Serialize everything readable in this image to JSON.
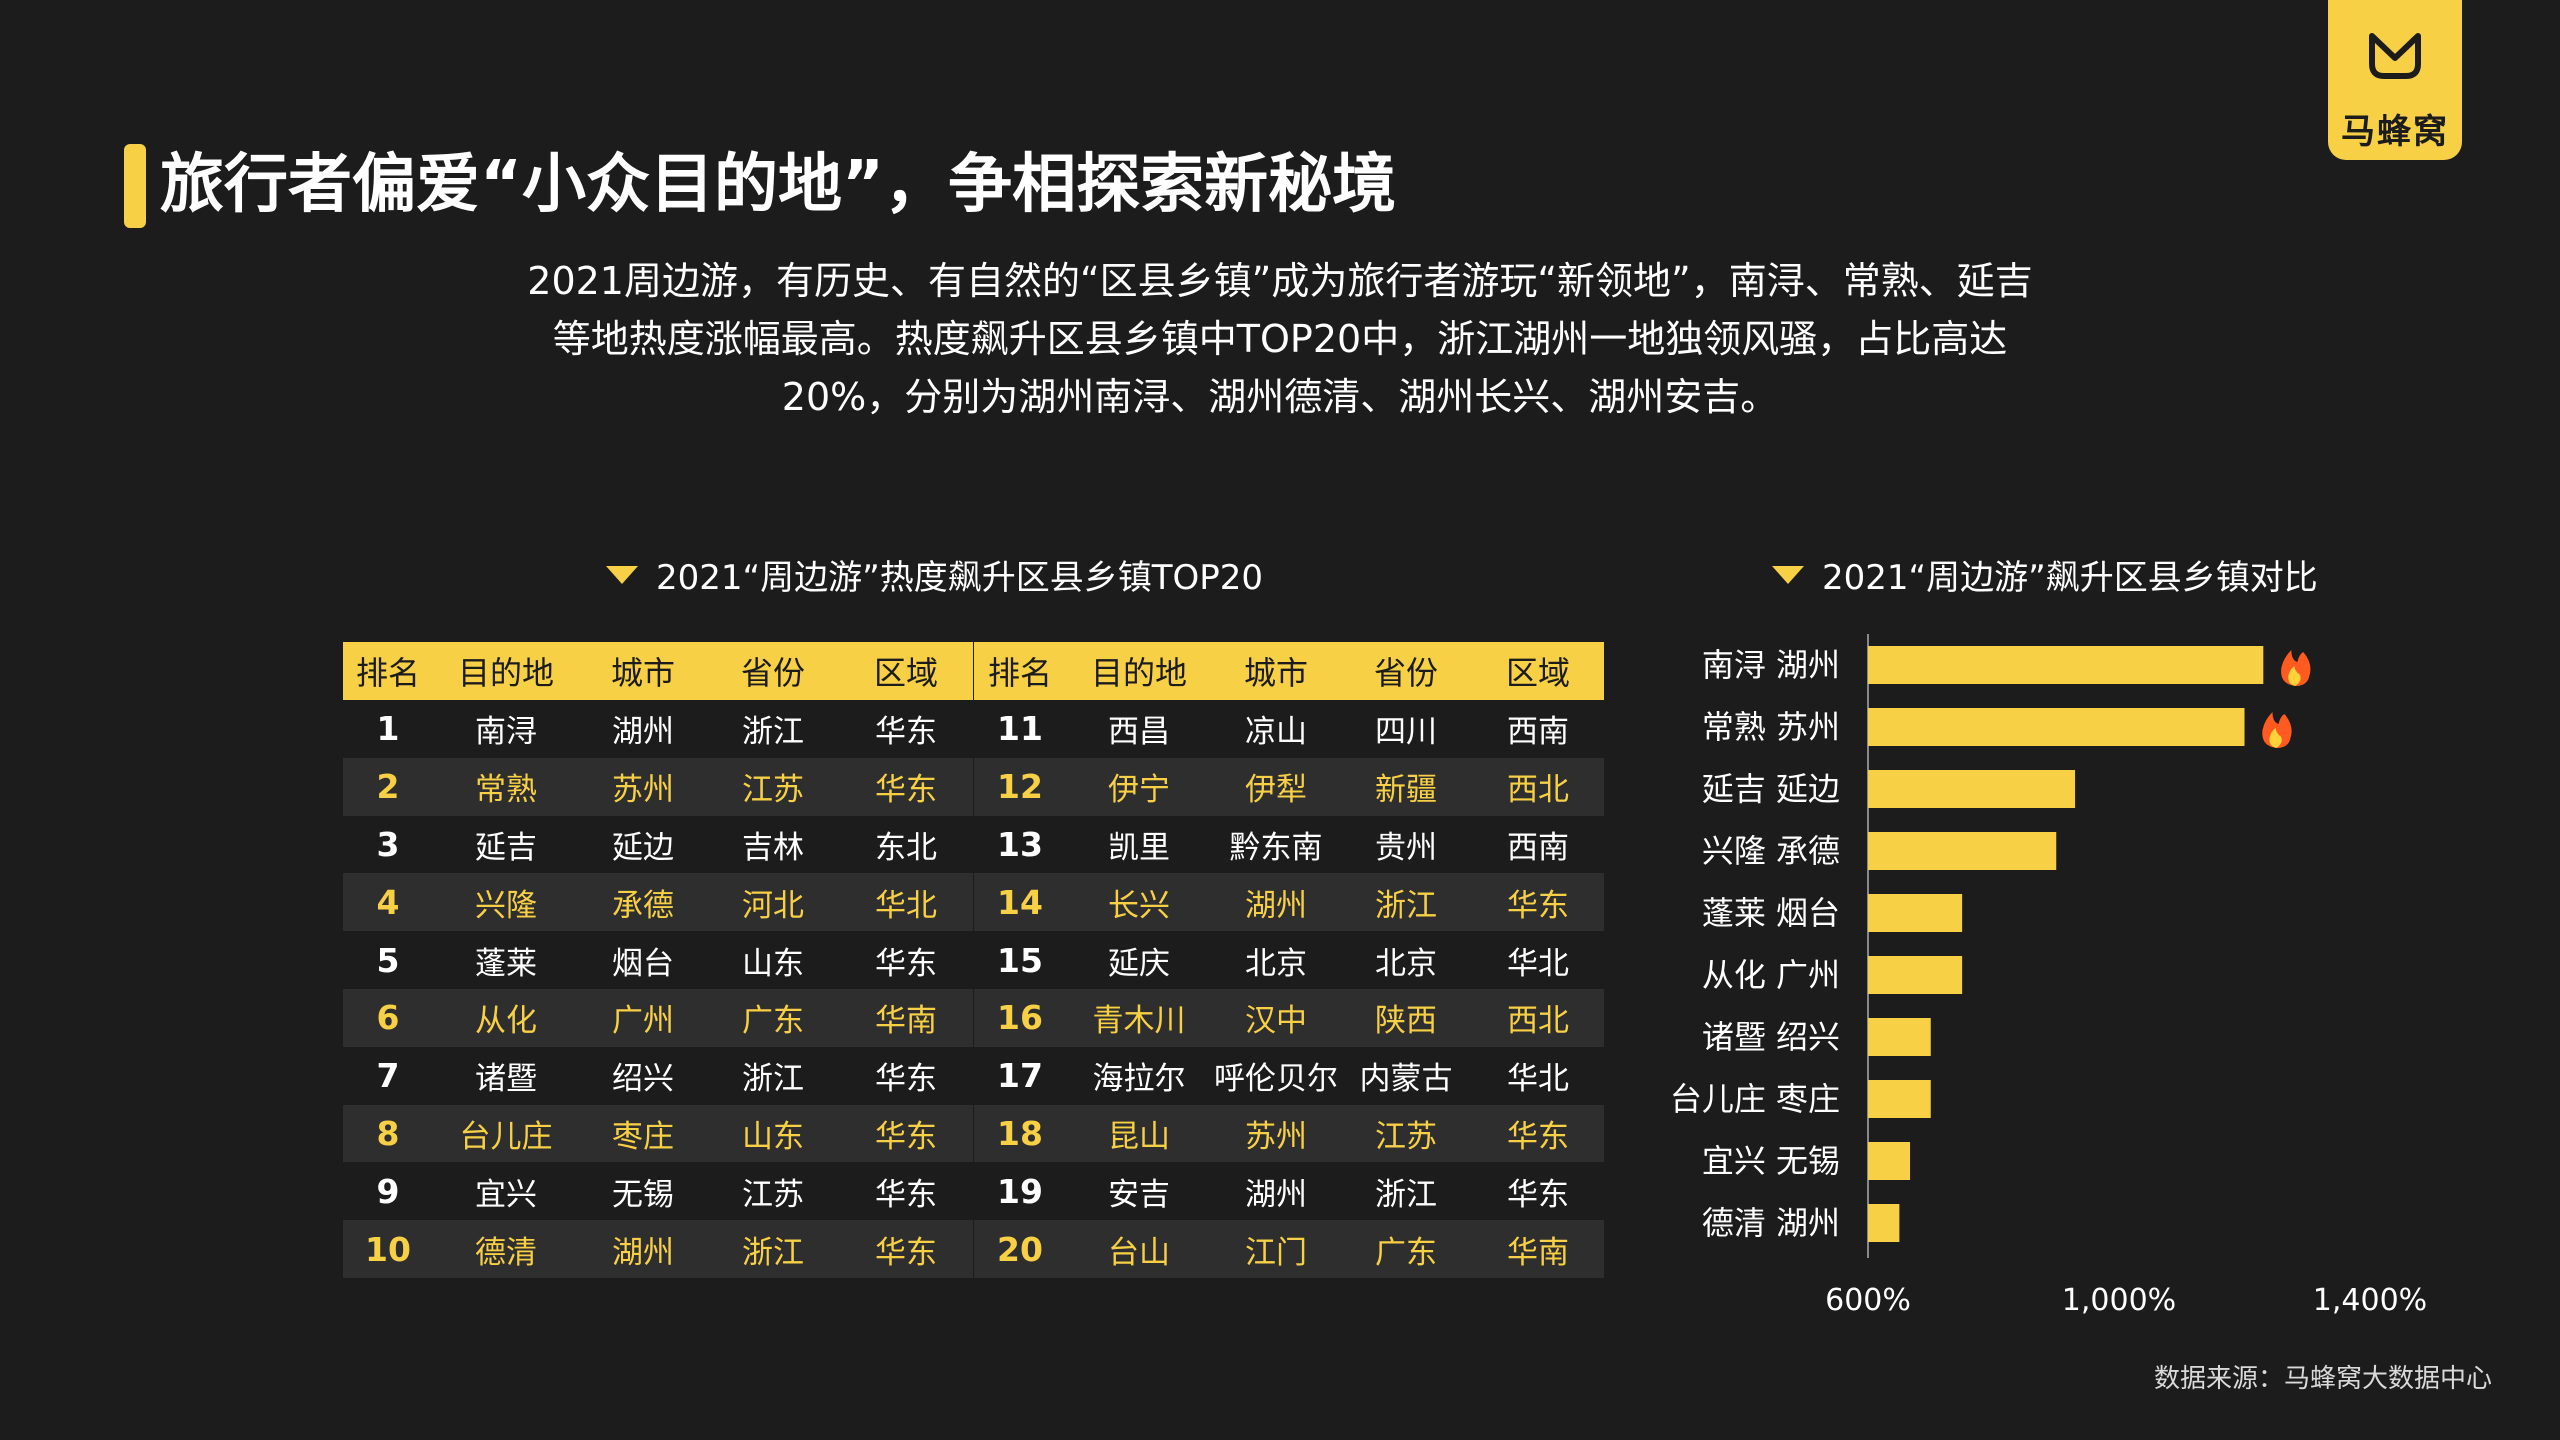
{
  "brand": {
    "name": "马蜂窝",
    "color": "#f7d046"
  },
  "header": {
    "title": "旅行者偏爱“小众目的地”，争相探索新秘境",
    "intro_lines": [
      "2021周边游，有历史、有自然的“区县乡镇”成为旅行者游玩“新领地”，南浔、常熟、延吉",
      "等地热度涨幅最高。热度飙升区县乡镇中TOP20中，浙江湖州一地独领风骚，占比高达",
      "20%，分别为湖州南浔、湖州德清、湖州长兴、湖州安吉。"
    ]
  },
  "table_section": {
    "title": "2021“周边游”热度飙升区县乡镇TOP20",
    "headers": [
      "排名",
      "目的地",
      "城市",
      "省份",
      "区域"
    ],
    "rows": [
      [
        "1",
        "南浔",
        "湖州",
        "浙江",
        "华东"
      ],
      [
        "2",
        "常熟",
        "苏州",
        "江苏",
        "华东"
      ],
      [
        "3",
        "延吉",
        "延边",
        "吉林",
        "东北"
      ],
      [
        "4",
        "兴隆",
        "承德",
        "河北",
        "华北"
      ],
      [
        "5",
        "蓬莱",
        "烟台",
        "山东",
        "华东"
      ],
      [
        "6",
        "从化",
        "广州",
        "广东",
        "华南"
      ],
      [
        "7",
        "诸暨",
        "绍兴",
        "浙江",
        "华东"
      ],
      [
        "8",
        "台儿庄",
        "枣庄",
        "山东",
        "华东"
      ],
      [
        "9",
        "宜兴",
        "无锡",
        "江苏",
        "华东"
      ],
      [
        "10",
        "德清",
        "湖州",
        "浙江",
        "华东"
      ],
      [
        "11",
        "西昌",
        "凉山",
        "四川",
        "西南"
      ],
      [
        "12",
        "伊宁",
        "伊犁",
        "新疆",
        "西北"
      ],
      [
        "13",
        "凯里",
        "黔东南",
        "贵州",
        "西南"
      ],
      [
        "14",
        "长兴",
        "湖州",
        "浙江",
        "华东"
      ],
      [
        "15",
        "延庆",
        "北京",
        "北京",
        "华北"
      ],
      [
        "16",
        "青木川",
        "汉中",
        "陕西",
        "西北"
      ],
      [
        "17",
        "海拉尔",
        "呼伦贝尔",
        "内蒙古",
        "华北"
      ],
      [
        "18",
        "昆山",
        "苏州",
        "江苏",
        "华东"
      ],
      [
        "19",
        "安吉",
        "湖州",
        "浙江",
        "华东"
      ],
      [
        "20",
        "台山",
        "江门",
        "广东",
        "华南"
      ]
    ]
  },
  "chart_section": {
    "title": "2021“周边游”飙升区县乡镇对比",
    "hot_icon": "fire-icon"
  },
  "chart_data": {
    "type": "bar",
    "orientation": "horizontal",
    "title": "2021“周边游”飙升区县乡镇对比",
    "categories": [
      "南浔 湖州",
      "常熟 苏州",
      "延吉 延边",
      "兴隆 承德",
      "蓬莱 烟台",
      "从化 广州",
      "诸暨 绍兴",
      "台儿庄 枣庄",
      "宜兴 无锡",
      "德清 湖州"
    ],
    "values": [
      1230,
      1200,
      930,
      900,
      750,
      750,
      700,
      700,
      667,
      650
    ],
    "hot_flags": [
      true,
      true,
      false,
      false,
      false,
      false,
      false,
      false,
      false,
      false
    ],
    "xlim": [
      600,
      1400
    ],
    "xticks": [
      600,
      1000,
      1400
    ],
    "xtick_labels": [
      "600%",
      "1,000%",
      "1,400%"
    ],
    "xlabel": "",
    "ylabel": "",
    "color": "#f7d046",
    "grid": false
  },
  "footer": {
    "source": "数据来源：马蜂窝大数据中心"
  }
}
